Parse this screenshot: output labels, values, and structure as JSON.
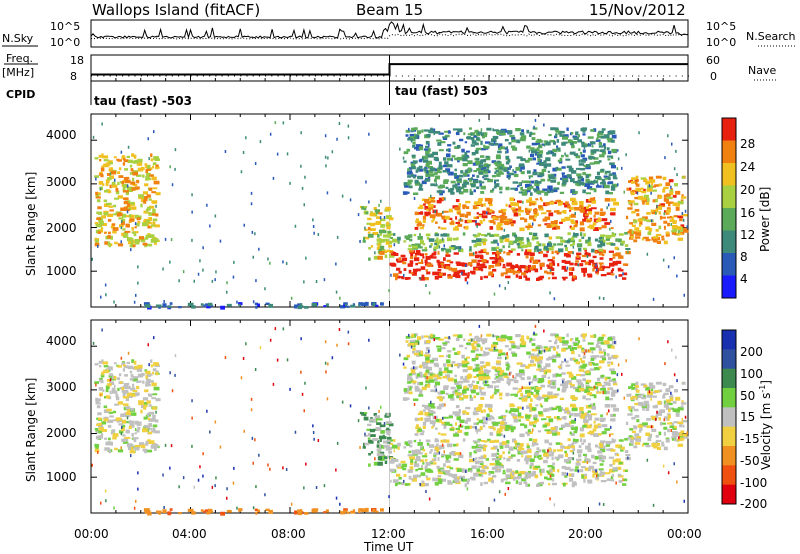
{
  "header": {
    "station": "Wallops Island (fitACF)",
    "beam": "Beam 15",
    "date": "15/Nov/2012"
  },
  "noise_panel": {
    "left_label": "N.Sky",
    "right_label": "N.Search",
    "left_ticks": [
      "10^5",
      "10^0"
    ],
    "right_ticks": [
      "10^5",
      "10^0"
    ]
  },
  "freq_panel": {
    "left_label": "Freq.",
    "left_unit": "[MHz]",
    "right_label": "Nave",
    "left_ticks": [
      "18",
      "8"
    ],
    "right_ticks": [
      "60",
      "0"
    ],
    "cpid_label": "CPID",
    "cpid_segments": [
      "tau (fast) -503",
      "tau (fast) 503"
    ]
  },
  "power_panel": {
    "ylabel": "Slant Range [km]",
    "yticks": [
      "4000",
      "3000",
      "2000",
      "1000"
    ],
    "colorbar_label": "Power [dB]",
    "colorbar_ticks": [
      "28",
      "24",
      "20",
      "16",
      "12",
      "8",
      "4"
    ]
  },
  "velocity_panel": {
    "ylabel": "Slant Range [km]",
    "yticks": [
      "4000",
      "3000",
      "2000",
      "1000"
    ],
    "colorbar_label": "Velocity [m s",
    "colorbar_label_sup": "-1",
    "colorbar_label_end": "]",
    "colorbar_ticks": [
      "200",
      "100",
      "50",
      "15",
      "-15",
      "-50",
      "-100",
      "-200"
    ]
  },
  "xaxis": {
    "label": "Time UT",
    "ticks": [
      "00:00",
      "04:00",
      "08:00",
      "12:00",
      "16:00",
      "20:00",
      "00:00"
    ]
  },
  "chart_data": {
    "type": "heatmap",
    "title": "Wallops Island (fitACF)",
    "xlabel": "Time UT",
    "ylabel": "Slant Range [km]",
    "x_range_hours": [
      0,
      24
    ],
    "y_range_km": [
      180,
      4600
    ],
    "power_colorscale_db": [
      0,
      30
    ],
    "velocity_colorscale_ms": [
      -250,
      250
    ],
    "frequency_mhz": [
      {
        "t_start": 0,
        "t_end": 12,
        "value": 10.5
      },
      {
        "t_start": 12,
        "t_end": 24,
        "value": 14.5
      }
    ],
    "echo_regions": [
      {
        "t": [
          0.1,
          2.6
        ],
        "r": [
          1600,
          3700
        ],
        "power_db": 20,
        "velocity_ms": 0
      },
      {
        "t": [
          10.8,
          12
        ],
        "r": [
          1300,
          2500
        ],
        "power_db": 18,
        "velocity_ms": 30
      },
      {
        "t": [
          12,
          21.5
        ],
        "r": [
          850,
          1500
        ],
        "power_db": 28,
        "velocity_ms": 0
      },
      {
        "t": [
          12,
          21.5
        ],
        "r": [
          1500,
          1900
        ],
        "power_db": 14,
        "velocity_ms": 0
      },
      {
        "t": [
          13,
          21
        ],
        "r": [
          2000,
          2700
        ],
        "power_db": 24,
        "velocity_ms": 0
      },
      {
        "t": [
          12.5,
          21
        ],
        "r": [
          2800,
          4300
        ],
        "power_db": 10,
        "velocity_ms": 0
      },
      {
        "t": [
          21.5,
          23.8
        ],
        "r": [
          1700,
          3200
        ],
        "power_db": 22,
        "velocity_ms": 0
      },
      {
        "t": [
          2,
          11.8
        ],
        "r": [
          200,
          300
        ],
        "power_db": 6,
        "velocity_ms": -60
      }
    ]
  }
}
